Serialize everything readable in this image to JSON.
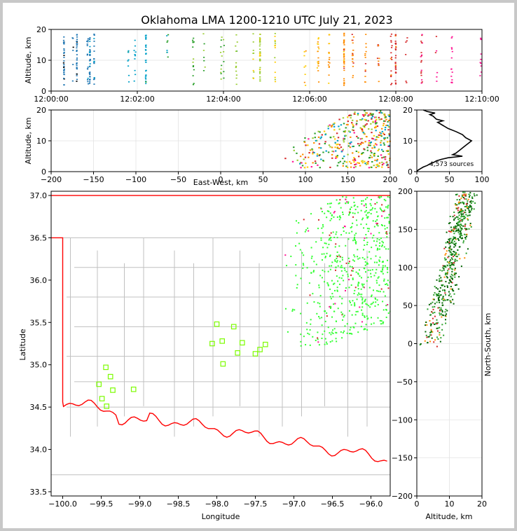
{
  "title": "Oklahoma LMA 1200-1210 UTC July 21, 2023",
  "chart_data": [
    {
      "panel": "time-height",
      "type": "scatter",
      "ylabel": "Altitude, km",
      "xlim": [
        "12:00:00",
        "12:10:00"
      ],
      "ylim": [
        0,
        20
      ],
      "x_ticks": [
        "12:00:00",
        "12:02:00",
        "12:04:00",
        "12:06:00",
        "12:08:00",
        "12:10:00"
      ],
      "y_ticks": [
        "0",
        "10",
        "20"
      ],
      "grid": true,
      "source_columns_minutes": [
        0.3,
        0.5,
        0.6,
        0.85,
        0.9,
        1.0,
        1.8,
        1.95,
        2.2,
        2.7,
        3.3,
        3.55,
        3.95,
        4.0,
        4.3,
        4.7,
        4.85,
        5.2,
        5.9,
        6.2,
        6.45,
        6.8,
        7.0,
        7.3,
        7.6,
        7.9,
        8.0,
        8.25,
        8.6,
        8.95,
        9.3,
        9.97
      ]
    },
    {
      "panel": "east-west-altitude",
      "type": "scatter",
      "xlabel": "East-West, km",
      "ylabel": "Altitude, km",
      "xlim": [
        -200,
        200
      ],
      "ylim": [
        0,
        20
      ],
      "x_ticks": [
        "−200",
        "−150",
        "−100",
        "−50",
        "0",
        "50",
        "100",
        "150",
        "200"
      ],
      "y_ticks": [
        "0",
        "10",
        "20"
      ],
      "grid": true
    },
    {
      "panel": "altitude-histogram",
      "type": "line",
      "annotation": "4,573 sources",
      "xlim": [
        0,
        100
      ],
      "ylim": [
        0,
        20
      ],
      "x_ticks": [
        "0",
        "50",
        "100"
      ],
      "y_ticks": [
        "0",
        "10",
        "20"
      ],
      "profile": [
        {
          "alt": 0.5,
          "count": 2
        },
        {
          "alt": 1.0,
          "count": 6
        },
        {
          "alt": 1.5,
          "count": 10
        },
        {
          "alt": 2.0,
          "count": 16
        },
        {
          "alt": 2.5,
          "count": 20
        },
        {
          "alt": 3.0,
          "count": 26
        },
        {
          "alt": 3.5,
          "count": 30
        },
        {
          "alt": 4.0,
          "count": 38
        },
        {
          "alt": 4.5,
          "count": 48
        },
        {
          "alt": 5.0,
          "count": 70
        },
        {
          "alt": 5.5,
          "count": 55
        },
        {
          "alt": 6.0,
          "count": 60
        },
        {
          "alt": 7.0,
          "count": 66
        },
        {
          "alt": 8.0,
          "count": 72
        },
        {
          "alt": 9.0,
          "count": 78
        },
        {
          "alt": 10.0,
          "count": 84
        },
        {
          "alt": 11.0,
          "count": 75
        },
        {
          "alt": 12.0,
          "count": 70
        },
        {
          "alt": 13.0,
          "count": 60
        },
        {
          "alt": 14.0,
          "count": 48
        },
        {
          "alt": 15.0,
          "count": 40
        },
        {
          "alt": 16.0,
          "count": 32
        },
        {
          "alt": 16.5,
          "count": 40
        },
        {
          "alt": 17.0,
          "count": 30
        },
        {
          "alt": 18.0,
          "count": 25
        },
        {
          "alt": 18.5,
          "count": 20
        },
        {
          "alt": 19.0,
          "count": 28
        },
        {
          "alt": 19.5,
          "count": 16
        },
        {
          "alt": 20.0,
          "count": 10
        }
      ]
    },
    {
      "panel": "plan-view",
      "type": "scatter",
      "xlabel": "Longitude",
      "ylabel": "Latitude",
      "xlim": [
        -100.15,
        -95.75
      ],
      "ylim": [
        33.45,
        37.05
      ],
      "x_ticks": [
        "−100.0",
        "−99.5",
        "−99.0",
        "−98.5",
        "−98.0",
        "−97.5",
        "−97.0",
        "−96.5",
        "−96.0"
      ],
      "y_ticks": [
        "33.5",
        "34.0",
        "34.5",
        "35.0",
        "35.5",
        "36.0",
        "36.5",
        "37.0"
      ],
      "stations": [
        {
          "lon": -99.44,
          "lat": 34.97
        },
        {
          "lon": -99.38,
          "lat": 34.86
        },
        {
          "lon": -99.53,
          "lat": 34.77
        },
        {
          "lon": -99.35,
          "lat": 34.7
        },
        {
          "lon": -99.08,
          "lat": 34.71
        },
        {
          "lon": -99.49,
          "lat": 34.6
        },
        {
          "lon": -99.43,
          "lat": 34.51
        },
        {
          "lon": -98.0,
          "lat": 35.48
        },
        {
          "lon": -97.78,
          "lat": 35.45
        },
        {
          "lon": -98.06,
          "lat": 35.25
        },
        {
          "lon": -97.93,
          "lat": 35.28
        },
        {
          "lon": -97.67,
          "lat": 35.26
        },
        {
          "lon": -97.37,
          "lat": 35.24
        },
        {
          "lon": -97.44,
          "lat": 35.18
        },
        {
          "lon": -97.73,
          "lat": 35.14
        },
        {
          "lon": -97.5,
          "lat": 35.13
        },
        {
          "lon": -97.92,
          "lat": 35.01
        }
      ]
    },
    {
      "panel": "altitude-north-south",
      "type": "scatter",
      "xlabel": "Altitude, km",
      "ylabel": "North-South, km",
      "xlim": [
        0,
        20
      ],
      "ylim": [
        -200,
        200
      ],
      "x_ticks": [
        "0",
        "10",
        "20"
      ],
      "y_ticks": [
        "−200",
        "−150",
        "−100",
        "−50",
        "0",
        "50",
        "100",
        "150",
        "200"
      ],
      "grid": true
    }
  ],
  "colors": {
    "early": "#1f77b4",
    "mid": "#2ca02c",
    "late_mid": "#ffcc00",
    "late": "#d62728",
    "latest": "#ff1493",
    "plan_sources": "#33ff33",
    "stations": "#7cfc00",
    "state_border": "#ff0000",
    "counties": "#c0c0c0"
  }
}
